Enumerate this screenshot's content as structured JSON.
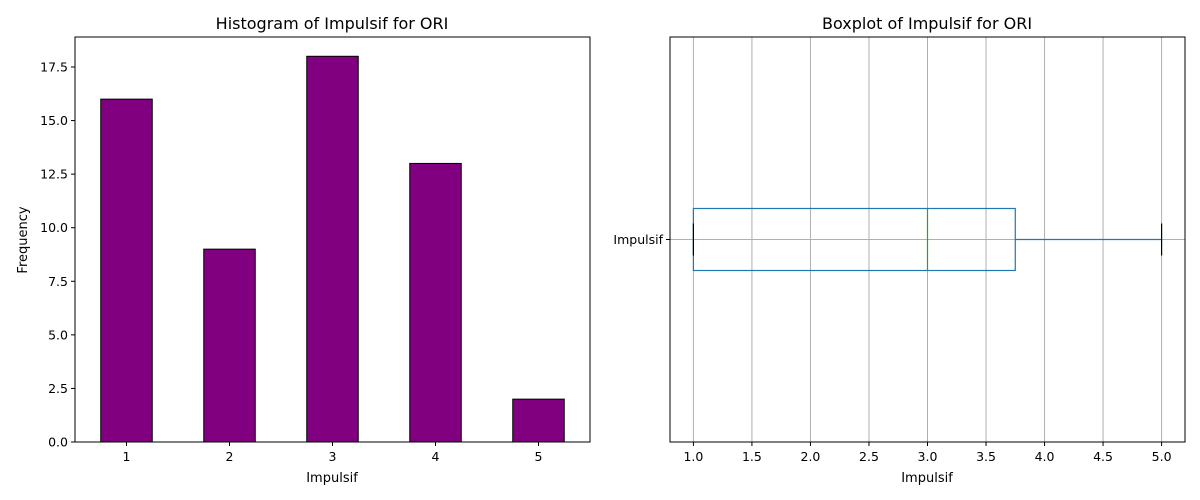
{
  "colors": {
    "bar_fill": "#800080",
    "bar_edge": "#000000",
    "box": "#1f77b4",
    "median": "#2ca02c",
    "grid": "#b0b0b0",
    "axis": "#000000"
  },
  "chart_data": [
    {
      "type": "bar",
      "title": "Histogram of Impulsif for ORI",
      "xlabel": "Impulsif",
      "ylabel": "Frequency",
      "categories": [
        "1",
        "2",
        "3",
        "4",
        "5"
      ],
      "values": [
        16,
        9,
        18,
        13,
        2
      ],
      "ylim": [
        0,
        18.9
      ],
      "yticks": [
        0.0,
        2.5,
        5.0,
        7.5,
        10.0,
        12.5,
        15.0,
        17.5
      ],
      "ytick_labels": [
        "0.0",
        "2.5",
        "5.0",
        "7.5",
        "10.0",
        "12.5",
        "15.0",
        "17.5"
      ],
      "grid": false
    },
    {
      "type": "boxplot",
      "title": "Boxplot of Impulsif for ORI",
      "xlabel": "Impulsif",
      "category": "Impulsif",
      "orientation": "horizontal",
      "whisker_low": 1.0,
      "q1": 1.0,
      "median": 3.0,
      "q3": 3.75,
      "whisker_high": 5.0,
      "xlim": [
        0.8,
        5.2
      ],
      "xticks": [
        1.0,
        1.5,
        2.0,
        2.5,
        3.0,
        3.5,
        4.0,
        4.5,
        5.0
      ],
      "xtick_labels": [
        "1.0",
        "1.5",
        "2.0",
        "2.5",
        "3.0",
        "3.5",
        "4.0",
        "4.5",
        "5.0"
      ],
      "grid": true
    }
  ]
}
